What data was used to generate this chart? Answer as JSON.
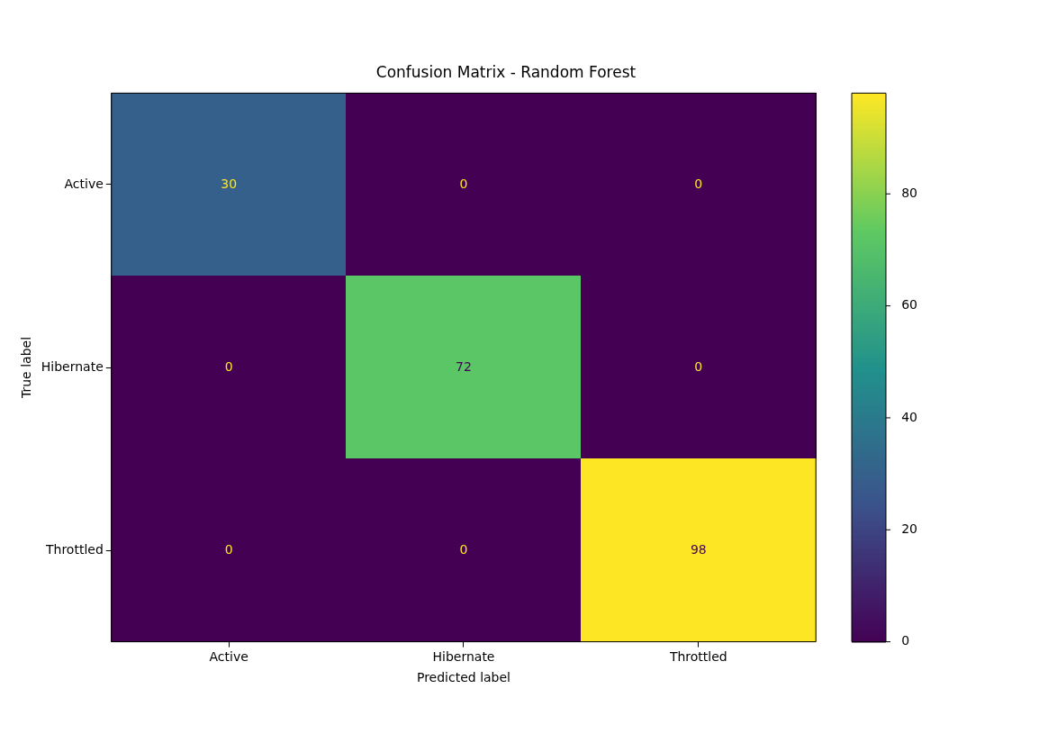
{
  "chart_data": {
    "type": "heatmap",
    "title": "Confusion Matrix - Random Forest",
    "xlabel": "Predicted label",
    "ylabel": "True label",
    "categories": [
      "Active",
      "Hibernate",
      "Throttled"
    ],
    "y_categories": [
      "Active",
      "Hibernate",
      "Throttled"
    ],
    "cells": [
      [
        30,
        0,
        0
      ],
      [
        0,
        72,
        0
      ],
      [
        0,
        0,
        98
      ]
    ],
    "clim": [
      0,
      98
    ],
    "cticks": [
      0,
      20,
      40,
      60,
      80
    ],
    "data_labels": true
  }
}
